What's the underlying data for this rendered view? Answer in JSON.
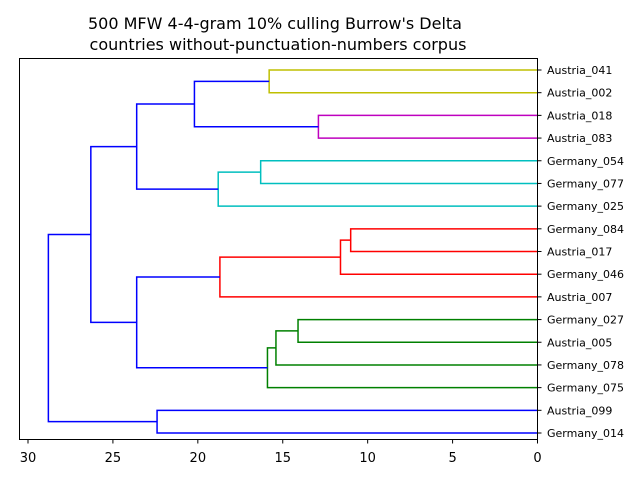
{
  "chart_data": {
    "type": "dendrogram",
    "title": [
      "500 MFW 4-4-gram 10% culling Burrow's Delta",
      "countries without-punctuation-numbers corpus"
    ],
    "xlabel": "",
    "ylabel": "",
    "orientation": "right",
    "xlim": [
      30.5,
      0
    ],
    "x_ticks": [
      30,
      25,
      20,
      15,
      10,
      5,
      0
    ],
    "grid": false,
    "leaves": [
      "Austria_041",
      "Austria_002",
      "Austria_018",
      "Austria_083",
      "Germany_054",
      "Germany_077",
      "Germany_025",
      "Germany_084",
      "Austria_017",
      "Germany_046",
      "Austria_007",
      "Germany_027",
      "Austria_005",
      "Germany_078",
      "Germany_075",
      "Austria_099",
      "Germany_014"
    ],
    "colors": {
      "yellow": "#bfbf00",
      "magenta": "#bf00bf",
      "cyan": "#00bfbf",
      "red": "#ff0000",
      "green": "#008000",
      "blue": "#0000ff"
    },
    "merges": [
      {
        "id": "A",
        "left": "Austria_041",
        "right": "Austria_002",
        "height": 15.8,
        "color": "yellow"
      },
      {
        "id": "B",
        "left": "Austria_018",
        "right": "Austria_083",
        "height": 12.9,
        "color": "magenta"
      },
      {
        "id": "C",
        "left": "A",
        "right": "B",
        "height": 20.2,
        "color": "blue"
      },
      {
        "id": "D",
        "left": "Germany_054",
        "right": "Germany_077",
        "height": 16.3,
        "color": "cyan"
      },
      {
        "id": "E",
        "left": "D",
        "right": "Germany_025",
        "height": 18.8,
        "color": "cyan"
      },
      {
        "id": "F",
        "left": "C",
        "right": "E",
        "height": 23.6,
        "color": "blue"
      },
      {
        "id": "G",
        "left": "Germany_084",
        "right": "Austria_017",
        "height": 11.0,
        "color": "red"
      },
      {
        "id": "H",
        "left": "G",
        "right": "Germany_046",
        "height": 11.6,
        "color": "red"
      },
      {
        "id": "I",
        "left": "H",
        "right": "Austria_007",
        "height": 18.7,
        "color": "red"
      },
      {
        "id": "J",
        "left": "Germany_027",
        "right": "Austria_005",
        "height": 14.1,
        "color": "green"
      },
      {
        "id": "K",
        "left": "J",
        "right": "Germany_078",
        "height": 15.4,
        "color": "green"
      },
      {
        "id": "L",
        "left": "K",
        "right": "Germany_075",
        "height": 15.9,
        "color": "green"
      },
      {
        "id": "M",
        "left": "I",
        "right": "L",
        "height": 23.6,
        "color": "blue"
      },
      {
        "id": "N",
        "left": "F",
        "right": "M",
        "height": 26.3,
        "color": "blue"
      },
      {
        "id": "O",
        "left": "Austria_099",
        "right": "Germany_014",
        "height": 22.4,
        "color": "blue"
      },
      {
        "id": "P",
        "left": "N",
        "right": "O",
        "height": 28.8,
        "color": "blue"
      }
    ]
  }
}
